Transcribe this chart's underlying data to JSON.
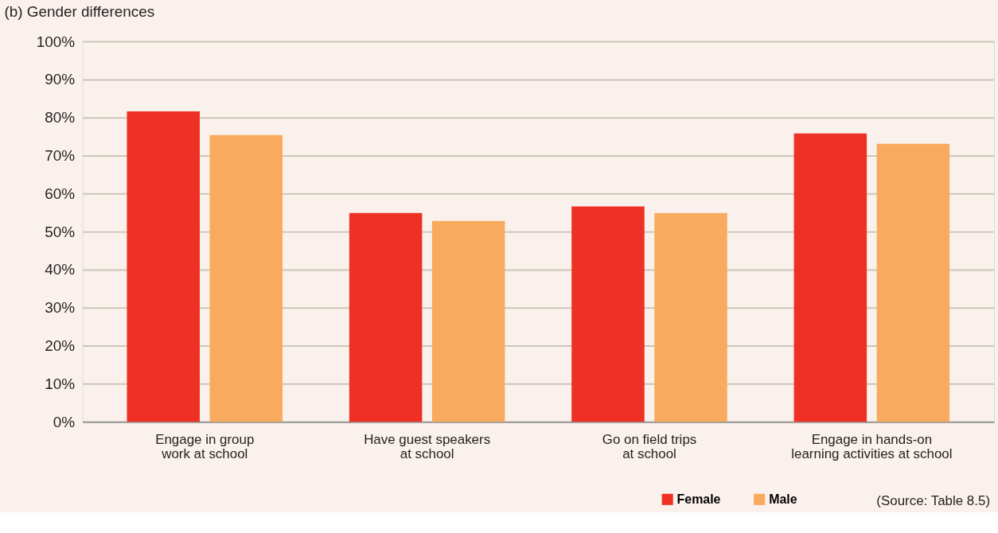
{
  "chart_data": {
    "type": "bar",
    "title": "(b) Gender differences",
    "categories": [
      "Engage in group\nwork at school",
      "Have guest speakers\nat school",
      "Go on field trips\nat school",
      "Engage in hands-on\nlearning activities at school"
    ],
    "series": [
      {
        "name": "Female",
        "color": "#ee3124",
        "values": [
          81.6,
          54.9,
          56.6,
          75.8
        ]
      },
      {
        "name": "Male",
        "color": "#f8ab5e",
        "values": [
          75.4,
          52.8,
          54.9,
          73.1
        ]
      }
    ],
    "ylim": [
      0,
      100
    ],
    "yticks": [
      {
        "value": 0,
        "label": "0%"
      },
      {
        "value": 10,
        "label": "10%"
      },
      {
        "value": 20,
        "label": "20%"
      },
      {
        "value": 30,
        "label": "30%"
      },
      {
        "value": 40,
        "label": "40%"
      },
      {
        "value": 50,
        "label": "50%"
      },
      {
        "value": 60,
        "label": "60%"
      },
      {
        "value": 70,
        "label": "70%"
      },
      {
        "value": 80,
        "label": "80%"
      },
      {
        "value": 90,
        "label": "90%"
      },
      {
        "value": 100,
        "label": "100%"
      }
    ],
    "grid": "y",
    "legend": "bottom right",
    "annotations": [
      "(Source: Table 8.5)"
    ]
  }
}
